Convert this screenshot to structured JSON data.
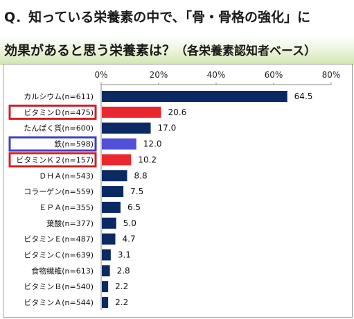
{
  "title": {
    "line1": "Q．知っている栄養素の中で、「骨・骨格の強化」に",
    "line2_main": "効果があると思う栄養素は？",
    "line2_sub": "（各栄養素認知者ベース）"
  },
  "chart_data": {
    "type": "bar",
    "orientation": "horizontal",
    "categories": [
      "カルシウム(n=611)",
      "ビタミンＤ(n=475)",
      "たんぱく質(n=600)",
      "鉄(n=598)",
      "ビタミンＫ２(n=157)",
      "ＤＨＡ(n=543)",
      "コラーゲン(n=559)",
      "ＥＰＡ(n=355)",
      "葉酸(n=377)",
      "ビタミンＥ(n=487)",
      "ビタミンＣ(n=639)",
      "食物繊維(n=613)",
      "ビタミンＢ(n=540)",
      "ビタミンＡ(n=544)"
    ],
    "values": [
      64.5,
      20.6,
      17.0,
      12.0,
      10.2,
      8.8,
      7.5,
      6.5,
      5.0,
      4.7,
      3.1,
      2.8,
      2.2,
      2.2
    ],
    "value_labels": [
      "64.5",
      "20.6",
      "17.0",
      "12.0",
      "10.2",
      "8.8",
      "7.5",
      "6.5",
      "5.0",
      "4.7",
      "3.1",
      "2.8",
      "2.2",
      "2.2"
    ],
    "bar_colors": [
      "#0b2a63",
      "#e8282e",
      "#0b2a63",
      "#5050d8",
      "#e8282e",
      "#0b2a63",
      "#0b2a63",
      "#0b2a63",
      "#0b2a63",
      "#0b2a63",
      "#0b2a63",
      "#0b2a63",
      "#0b2a63",
      "#0b2a63"
    ],
    "highlight_box_colors": [
      "",
      "#d0202a",
      "",
      "#3f3fc8",
      "#d0202a",
      "",
      "",
      "",
      "",
      "",
      "",
      "",
      "",
      ""
    ],
    "xlim": [
      0,
      80
    ],
    "xticks": [
      "0%",
      "20%",
      "40%",
      "60%",
      "80%"
    ],
    "xtick_values": [
      0,
      20,
      40,
      60,
      80
    ],
    "grid": false
  }
}
